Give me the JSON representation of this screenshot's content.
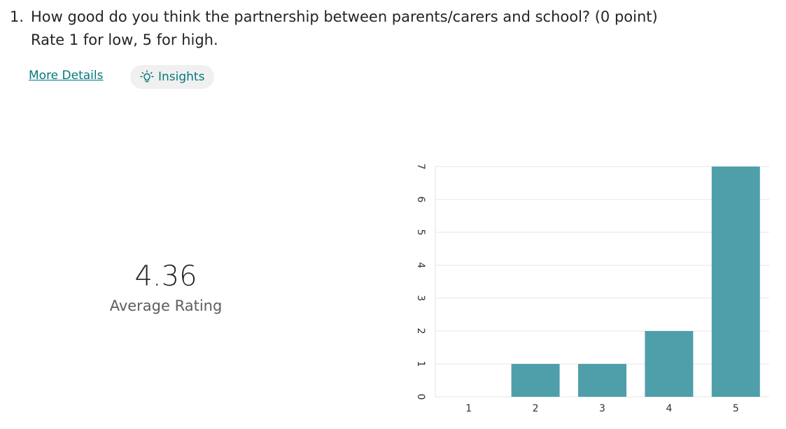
{
  "question": {
    "number": "1.",
    "text": "How good do you think the partnership between parents/carers and school? (0 point)",
    "subtext": "Rate 1 for low, 5 for high."
  },
  "links": {
    "more_details": "More Details",
    "insights": "Insights"
  },
  "icons": {
    "insights": "lightbulb-icon"
  },
  "summary": {
    "average_value": "4.36",
    "average_label": "Average Rating"
  },
  "colors": {
    "bar": "#4f9fab",
    "link": "#03787c",
    "grid": "#e6e6e6"
  },
  "chart_data": {
    "type": "bar",
    "categories": [
      "1",
      "2",
      "3",
      "4",
      "5"
    ],
    "values": [
      0,
      1,
      1,
      2,
      7
    ],
    "ylim": [
      0,
      7
    ],
    "yticks": [
      0,
      1,
      2,
      3,
      4,
      5,
      6,
      7
    ],
    "grid": true,
    "ytick_rotation": "rotated-90"
  }
}
